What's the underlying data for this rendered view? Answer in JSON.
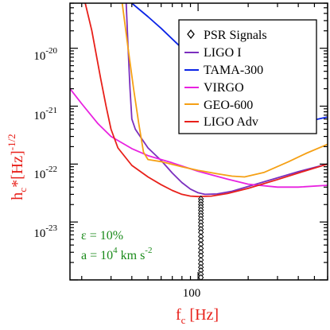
{
  "chart_data": {
    "type": "line",
    "title": "",
    "x_scale": "log",
    "y_scale": "log",
    "xlim": [
      17,
      600
    ],
    "ylim": [
      1e-24,
      6e-20
    ],
    "grid": false,
    "legend_position": "top-right",
    "x_ticks": [
      {
        "value": 100,
        "label": "100"
      }
    ],
    "y_ticks": [
      {
        "value": 1e-23,
        "base": "10",
        "exp": "-23"
      },
      {
        "value": 1e-22,
        "base": "10",
        "exp": "-22"
      },
      {
        "value": 1e-21,
        "base": "10",
        "exp": "-21"
      },
      {
        "value": 1e-20,
        "base": "10",
        "exp": "-20"
      }
    ],
    "xlabel": {
      "main": "f",
      "sub": "c",
      "rest": " [Hz]"
    },
    "ylabel": {
      "main": "h",
      "sub": "c",
      "star_unit": "*[Hz]",
      "sup": "-1/2"
    },
    "series": [
      {
        "name": "LIGO I",
        "color": "#7b2fbe",
        "points": [
          [
            37,
            6e-20
          ],
          [
            38,
            1e-20
          ],
          [
            39,
            2e-21
          ],
          [
            40,
            6e-22
          ],
          [
            42,
            4e-22
          ],
          [
            46,
            2.7e-22
          ],
          [
            50,
            1.9e-22
          ],
          [
            60,
            1.15e-22
          ],
          [
            70,
            7e-23
          ],
          [
            80,
            4.8e-23
          ],
          [
            90,
            3.7e-23
          ],
          [
            100,
            3.2e-23
          ],
          [
            110,
            3e-23
          ],
          [
            130,
            3.05e-23
          ],
          [
            160,
            3.4e-23
          ],
          [
            200,
            4.1e-23
          ],
          [
            300,
            5.8e-23
          ],
          [
            400,
            7.4e-23
          ],
          [
            600,
            1e-22
          ]
        ]
      },
      {
        "name": "TAMA-300",
        "color": "#0b24e6",
        "points": [
          [
            40,
            6e-20
          ],
          [
            50,
            3.5e-20
          ],
          [
            60,
            2.2e-20
          ],
          [
            80,
            1e-20
          ],
          [
            100,
            5e-21
          ],
          [
            130,
            2e-21
          ],
          [
            160,
            1.05e-21
          ],
          [
            200,
            6.8e-22
          ],
          [
            250,
            5.2e-22
          ],
          [
            300,
            4.8e-22
          ],
          [
            350,
            4.9e-22
          ],
          [
            400,
            5.2e-22
          ],
          [
            500,
            5.8e-22
          ],
          [
            600,
            6.5e-22
          ]
        ]
      },
      {
        "name": "VIRGO",
        "color": "#e822e0",
        "points": [
          [
            17,
            2e-21
          ],
          [
            20,
            1.1e-21
          ],
          [
            25,
            5e-22
          ],
          [
            30,
            3e-22
          ],
          [
            40,
            1.85e-22
          ],
          [
            50,
            1.4e-22
          ],
          [
            70,
            1.05e-22
          ],
          [
            100,
            7.5e-23
          ],
          [
            150,
            5.5e-23
          ],
          [
            200,
            4.5e-23
          ],
          [
            300,
            4e-23
          ],
          [
            400,
            4e-23
          ],
          [
            600,
            4.3e-23
          ]
        ]
      },
      {
        "name": "GEO-600",
        "color": "#f5a015",
        "points": [
          [
            35,
            6e-20
          ],
          [
            38,
            1e-20
          ],
          [
            41,
            2e-21
          ],
          [
            44,
            5e-22
          ],
          [
            47,
            1.6e-22
          ],
          [
            50,
            1.2e-22
          ],
          [
            60,
            1.1e-22
          ],
          [
            80,
            9e-23
          ],
          [
            100,
            7.8e-23
          ],
          [
            130,
            6.8e-23
          ],
          [
            160,
            6.2e-23
          ],
          [
            190,
            6e-23
          ],
          [
            250,
            7.2e-23
          ],
          [
            350,
            1.1e-22
          ],
          [
            450,
            1.55e-22
          ],
          [
            600,
            2.2e-22
          ]
        ]
      },
      {
        "name": "LIGO Adv",
        "color": "#e8201a",
        "points": [
          [
            21,
            6e-20
          ],
          [
            23,
            2e-20
          ],
          [
            26,
            3e-21
          ],
          [
            28,
            1e-21
          ],
          [
            30,
            4e-22
          ],
          [
            33,
            1.9e-22
          ],
          [
            40,
            9.5e-23
          ],
          [
            50,
            6e-23
          ],
          [
            60,
            4.4e-23
          ],
          [
            70,
            3.5e-23
          ],
          [
            80,
            3e-23
          ],
          [
            90,
            2.8e-23
          ],
          [
            100,
            2.75e-23
          ],
          [
            120,
            2.8e-23
          ],
          [
            150,
            3.1e-23
          ],
          [
            200,
            3.8e-23
          ],
          [
            300,
            5.4e-23
          ],
          [
            400,
            7e-23
          ],
          [
            600,
            1e-22
          ]
        ]
      }
    ],
    "psr_series": {
      "name": "PSR Signals",
      "color": "#000000",
      "marker": "diamond-open",
      "points": [
        [
          104,
          2.5e-23
        ],
        [
          104,
          2.25e-23
        ],
        [
          104,
          2e-23
        ],
        [
          104,
          1.8e-23
        ],
        [
          104,
          1.6e-23
        ],
        [
          104,
          1.42e-23
        ],
        [
          104,
          1.27e-23
        ],
        [
          104,
          1.12e-23
        ],
        [
          104,
          9.8e-24
        ],
        [
          104,
          8.6e-24
        ],
        [
          104,
          7.5e-24
        ],
        [
          104,
          6.6e-24
        ],
        [
          104,
          5.6e-24
        ],
        [
          104,
          4.8e-24
        ],
        [
          104,
          4.1e-24
        ],
        [
          104,
          3.5e-24
        ],
        [
          104,
          3e-24
        ],
        [
          104,
          2.6e-24
        ],
        [
          104,
          2.2e-24
        ],
        [
          104,
          1.9e-24
        ],
        [
          104,
          1.65e-24
        ],
        [
          104,
          1.45e-24
        ],
        [
          104,
          1.25e-24
        ],
        [
          104,
          1.1e-24
        ]
      ]
    },
    "annotations": {
      "epsilon": {
        "lhs": "ε = 10%",
        "color": "#1a8a1a"
      },
      "accel": {
        "lhs": "a = 10",
        "sup": "4",
        "unit": " km s",
        "unit_sup": "-2",
        "color": "#1a8a1a"
      }
    }
  }
}
